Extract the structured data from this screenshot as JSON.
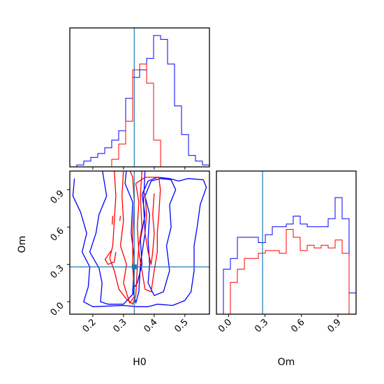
{
  "chart_data": {
    "type": "corner",
    "parameters": [
      "H0",
      "Om"
    ],
    "truth": {
      "H0": 0.335,
      "Om": 0.28
    },
    "colors": {
      "run_a": "#0000ff",
      "run_b": "#ff0000",
      "truth": "#1f77b4"
    },
    "axes": {
      "H0": {
        "label": "H0",
        "range": [
          0.125,
          0.58
        ],
        "ticks": [
          0.2,
          0.3,
          0.4,
          0.5
        ],
        "tick_labels": [
          "0.2",
          "0.3",
          "0.4",
          "0.5"
        ]
      },
      "Om": {
        "label": "Om",
        "range": [
          -0.1,
          1.05
        ],
        "ticks": [
          0.0,
          0.3,
          0.6,
          0.9
        ],
        "tick_labels": [
          "0.0",
          "0.3",
          "0.6",
          "0.9"
        ]
      }
    },
    "hist_H0": {
      "bins": [
        0.125,
        0.1478,
        0.1705,
        0.1933,
        0.216,
        0.2388,
        0.2615,
        0.2843,
        0.307,
        0.3298,
        0.3525,
        0.3753,
        0.398,
        0.4208,
        0.4435,
        0.4663,
        0.489,
        0.5118,
        0.5345,
        0.5573,
        0.58
      ],
      "run_a": [
        0,
        1,
        3,
        5,
        7,
        10,
        14,
        19,
        36,
        47,
        51,
        57,
        69,
        67,
        54,
        32,
        17,
        6,
        3,
        1
      ],
      "run_b": [
        0,
        0,
        0,
        0,
        0,
        0,
        4,
        12,
        24,
        51,
        54,
        44,
        14,
        0,
        0,
        0,
        0,
        0,
        0,
        0
      ],
      "ylim": [
        0,
        73
      ]
    },
    "hist_Om": {
      "bins": [
        -0.1,
        -0.0425,
        0.015,
        0.0725,
        0.13,
        0.1875,
        0.245,
        0.3025,
        0.36,
        0.4175,
        0.475,
        0.5325,
        0.59,
        0.6475,
        0.705,
        0.7625,
        0.82,
        0.8775,
        0.935,
        0.9925,
        1.05
      ],
      "run_a": [
        0,
        17,
        21,
        29,
        29,
        29,
        27,
        30,
        33,
        33,
        34,
        37,
        34,
        33,
        33,
        33,
        36,
        44,
        36,
        8
      ],
      "run_b": [
        0,
        0,
        12,
        17,
        21,
        21,
        23,
        24,
        24,
        23,
        32,
        29,
        24,
        26,
        25,
        26,
        25,
        28,
        23,
        0
      ],
      "ylim": [
        0,
        54
      ]
    },
    "contours_2d": {
      "run_a": [
        [
          [
            0.23,
            1.07
          ],
          [
            0.245,
            0.85
          ],
          [
            0.22,
            0.7
          ],
          [
            0.21,
            0.55
          ],
          [
            0.19,
            0.4
          ],
          [
            0.22,
            0.27
          ],
          [
            0.23,
            0.15
          ],
          [
            0.225,
            0.0
          ],
          [
            0.25,
            -0.02
          ],
          [
            0.3,
            -0.02
          ],
          [
            0.33,
            0.06
          ],
          [
            0.335,
            0.35
          ],
          [
            0.325,
            0.55
          ],
          [
            0.33,
            0.8
          ],
          [
            0.305,
            0.95
          ],
          [
            0.31,
            1.07
          ]
        ],
        [
          [
            0.14,
            0.99
          ],
          [
            0.135,
            0.85
          ],
          [
            0.16,
            0.72
          ],
          [
            0.18,
            0.55
          ],
          [
            0.165,
            0.4
          ],
          [
            0.19,
            0.28
          ],
          [
            0.185,
            0.12
          ],
          [
            0.17,
            0.0
          ],
          [
            0.2,
            -0.04
          ],
          [
            0.3,
            -0.03
          ],
          [
            0.345,
            -0.04
          ],
          [
            0.38,
            -0.04
          ],
          [
            0.41,
            -0.02
          ],
          [
            0.46,
            -0.03
          ],
          [
            0.5,
            0.01
          ],
          [
            0.52,
            0.08
          ],
          [
            0.53,
            0.25
          ],
          [
            0.53,
            0.45
          ],
          [
            0.54,
            0.6
          ],
          [
            0.55,
            0.78
          ],
          [
            0.57,
            0.92
          ],
          [
            0.56,
            0.98
          ],
          [
            0.51,
            0.99
          ],
          [
            0.48,
            0.97
          ],
          [
            0.45,
            0.99
          ],
          [
            0.41,
            1.0
          ],
          [
            0.38,
            0.97
          ],
          [
            0.36,
            0.86
          ],
          [
            0.37,
            0.7
          ],
          [
            0.355,
            0.5
          ],
          [
            0.36,
            0.3
          ],
          [
            0.345,
            0.15
          ],
          [
            0.33,
            0.1
          ],
          [
            0.34,
            -0.01
          ],
          [
            0.35,
            0.08
          ],
          [
            0.355,
            0.3
          ],
          [
            0.37,
            0.55
          ],
          [
            0.365,
            0.8
          ],
          [
            0.37,
            1.05
          ],
          [
            0.34,
            1.07
          ]
        ],
        [
          [
            0.39,
            0.97
          ],
          [
            0.37,
            0.85
          ],
          [
            0.385,
            0.7
          ],
          [
            0.38,
            0.5
          ],
          [
            0.385,
            0.3
          ],
          [
            0.38,
            0.15
          ],
          [
            0.4,
            0.05
          ],
          [
            0.43,
            0.08
          ],
          [
            0.45,
            0.25
          ],
          [
            0.44,
            0.45
          ],
          [
            0.455,
            0.6
          ],
          [
            0.45,
            0.78
          ],
          [
            0.47,
            0.9
          ],
          [
            0.455,
            0.98
          ],
          [
            0.42,
            0.99
          ],
          [
            0.39,
            0.97
          ]
        ]
      ],
      "run_b": [
        [
          [
            0.3,
            1.06
          ],
          [
            0.295,
            0.85
          ],
          [
            0.3,
            0.65
          ],
          [
            0.29,
            0.45
          ],
          [
            0.31,
            0.3
          ],
          [
            0.3,
            0.15
          ],
          [
            0.32,
            -0.01
          ],
          [
            0.335,
            0.04
          ],
          [
            0.33,
            0.3
          ],
          [
            0.33,
            0.55
          ],
          [
            0.335,
            0.8
          ],
          [
            0.33,
            1.0
          ],
          [
            0.32,
            1.06
          ]
        ],
        [
          [
            0.27,
            1.06
          ],
          [
            0.275,
            0.85
          ],
          [
            0.27,
            0.65
          ],
          [
            0.265,
            0.45
          ],
          [
            0.255,
            0.35
          ],
          [
            0.27,
            0.25
          ],
          [
            0.285,
            0.1
          ],
          [
            0.31,
            0.02
          ],
          [
            0.33,
            -0.02
          ],
          [
            0.34,
            0.05
          ],
          [
            0.345,
            0.28
          ],
          [
            0.35,
            0.45
          ],
          [
            0.36,
            0.6
          ],
          [
            0.355,
            0.85
          ],
          [
            0.36,
            1.05
          ],
          [
            0.35,
            1.07
          ]
        ],
        [
          [
            0.34,
            0.95
          ],
          [
            0.35,
            0.8
          ],
          [
            0.345,
            0.6
          ],
          [
            0.35,
            0.4
          ],
          [
            0.36,
            0.25
          ],
          [
            0.37,
            0.1
          ],
          [
            0.39,
            0.08
          ],
          [
            0.4,
            0.25
          ],
          [
            0.41,
            0.4
          ],
          [
            0.41,
            0.55
          ],
          [
            0.415,
            0.7
          ],
          [
            0.42,
            0.9
          ],
          [
            0.415,
            1.0
          ],
          [
            0.37,
            1.0
          ],
          [
            0.34,
            0.95
          ]
        ],
        [
          [
            0.37,
            0.87
          ],
          [
            0.375,
            0.7
          ],
          [
            0.37,
            0.55
          ],
          [
            0.38,
            0.4
          ],
          [
            0.39,
            0.3
          ],
          [
            0.395,
            0.4
          ],
          [
            0.4,
            0.55
          ],
          [
            0.395,
            0.7
          ],
          [
            0.4,
            0.87
          ]
        ],
        [
          [
            0.26,
            0.41
          ],
          [
            0.24,
            0.34
          ],
          [
            0.25,
            0.3
          ],
          [
            0.27,
            0.32
          ],
          [
            0.275,
            0.4
          ]
        ],
        [
          [
            0.263,
            0.62
          ],
          [
            0.265,
            0.69
          ]
        ],
        [
          [
            0.288,
            0.65
          ],
          [
            0.29,
            0.69
          ]
        ]
      ]
    }
  }
}
